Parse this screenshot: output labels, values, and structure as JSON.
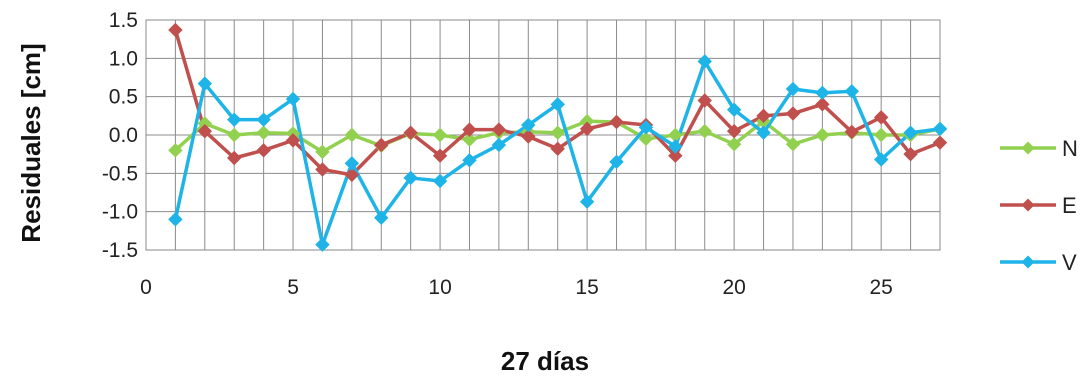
{
  "chart_data": {
    "type": "line",
    "title": "",
    "xlabel": "27 días",
    "ylabel": "Residuales [cm]",
    "xlim": [
      0,
      27
    ],
    "ylim": [
      -1.5,
      1.5
    ],
    "xticks": [
      0,
      5,
      10,
      15,
      20,
      25
    ],
    "xtick_labels": [
      "0",
      "5",
      "10",
      "15",
      "20",
      "25"
    ],
    "yticks": [
      1.5,
      1.0,
      0.5,
      0.0,
      -0.5,
      -1.0,
      -1.5
    ],
    "ytick_labels": [
      "1.5",
      "1.0",
      "0.5",
      "0.0",
      "-0.5",
      "-1.0",
      "-1.5"
    ],
    "grid": true,
    "legend_position": "right",
    "marker": "diamond",
    "x": [
      1,
      2,
      3,
      4,
      5,
      6,
      7,
      8,
      9,
      10,
      11,
      12,
      13,
      14,
      15,
      16,
      17,
      18,
      19,
      20,
      21,
      22,
      23,
      24,
      25,
      26,
      27
    ],
    "series": [
      {
        "name": "N",
        "color": "#92d050",
        "values": [
          -0.2,
          0.15,
          0.0,
          0.03,
          0.02,
          -0.22,
          0.0,
          -0.14,
          0.02,
          0.0,
          -0.06,
          0.03,
          0.04,
          0.03,
          0.18,
          0.17,
          -0.05,
          0.0,
          0.05,
          -0.12,
          0.18,
          -0.12,
          0.0,
          0.03,
          0.0,
          0.0,
          0.08
        ]
      },
      {
        "name": "E",
        "color": "#c0504d",
        "values": [
          1.37,
          0.05,
          -0.3,
          -0.2,
          -0.07,
          -0.45,
          -0.52,
          -0.13,
          0.03,
          -0.27,
          0.07,
          0.07,
          -0.02,
          -0.18,
          0.08,
          0.17,
          0.13,
          -0.27,
          0.45,
          0.05,
          0.25,
          0.28,
          0.4,
          0.04,
          0.23,
          -0.25,
          -0.1
        ]
      },
      {
        "name": "V",
        "color": "#1fb4e8",
        "values": [
          -1.1,
          0.67,
          0.2,
          0.2,
          0.47,
          -1.43,
          -0.37,
          -1.08,
          -0.56,
          -0.6,
          -0.33,
          -0.13,
          0.13,
          0.4,
          -0.87,
          -0.35,
          0.1,
          -0.15,
          0.96,
          0.33,
          0.03,
          0.6,
          0.55,
          0.57,
          -0.32,
          0.03,
          0.08
        ]
      }
    ]
  },
  "colors": {
    "plot_border": "#888888",
    "grid": "#8c8c8c"
  }
}
